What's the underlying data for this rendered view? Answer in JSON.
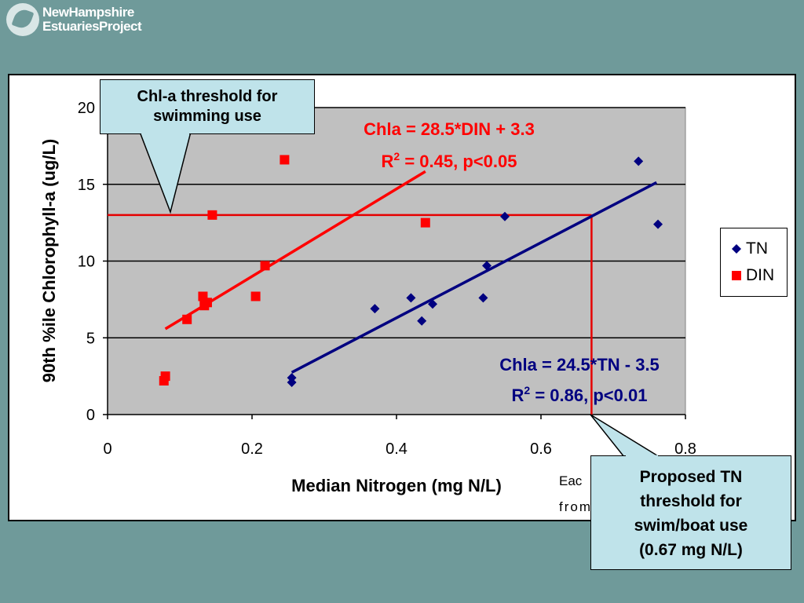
{
  "logo": {
    "line1": "NewHampshire",
    "line2": "EstuariesProject"
  },
  "callouts": {
    "swim_line1": "Chl-a threshold for",
    "swim_line2": "swimming use",
    "tn_line1": "Proposed TN",
    "tn_line2": "threshold for",
    "tn_line3": "swim/boat use",
    "tn_line4": "(0.67 mg N/L)"
  },
  "note_fragment": {
    "line1": "Eac",
    "line2": "from"
  },
  "colors": {
    "tn": "#000080",
    "din": "#ff0000",
    "threshold": "#e60000",
    "plot_bg": "#c0c0c0"
  },
  "chart_data": {
    "type": "scatter",
    "title": "",
    "xlabel": "Median Nitrogen (mg N/L)",
    "ylabel": "90th %ile Chlorophyll-a (ug/L)",
    "xlim": [
      0,
      0.8
    ],
    "ylim": [
      0,
      20
    ],
    "x_ticks": [
      "0",
      "0.2",
      "0.4",
      "0.6",
      "0.8"
    ],
    "y_ticks": [
      "0",
      "5",
      "10",
      "15",
      "20"
    ],
    "grid": true,
    "legend_position": "right",
    "series": [
      {
        "name": "TN",
        "marker": "diamond",
        "points": [
          [
            0.255,
            2.1
          ],
          [
            0.255,
            2.4
          ],
          [
            0.37,
            6.9
          ],
          [
            0.42,
            7.6
          ],
          [
            0.435,
            6.1
          ],
          [
            0.45,
            7.2
          ],
          [
            0.52,
            7.6
          ],
          [
            0.525,
            9.7
          ],
          [
            0.55,
            12.9
          ],
          [
            0.735,
            16.5
          ],
          [
            0.762,
            12.4
          ]
        ],
        "fit": {
          "x": [
            0.255,
            0.76
          ],
          "label_line1": "Chla = 24.5*TN - 3.5",
          "label_line2_pre": "R",
          "label_line2_sup": "2",
          "label_line2_post": " = 0.86, p<0.01"
        }
      },
      {
        "name": "DIN",
        "marker": "square",
        "points": [
          [
            0.078,
            2.2
          ],
          [
            0.08,
            2.5
          ],
          [
            0.11,
            6.2
          ],
          [
            0.132,
            7.7
          ],
          [
            0.134,
            7.1
          ],
          [
            0.138,
            7.3
          ],
          [
            0.145,
            13.0
          ],
          [
            0.205,
            7.7
          ],
          [
            0.218,
            9.7
          ],
          [
            0.245,
            16.6
          ],
          [
            0.44,
            12.5
          ]
        ],
        "fit": {
          "x": [
            0.08,
            0.44
          ],
          "label_line1": "Chla = 28.5*DIN + 3.3",
          "label_line2_pre": "R",
          "label_line2_sup": "2",
          "label_line2_post": " = 0.45, p<0.05"
        }
      }
    ],
    "thresholds": {
      "chla": 13.0,
      "tn": 0.67
    }
  }
}
